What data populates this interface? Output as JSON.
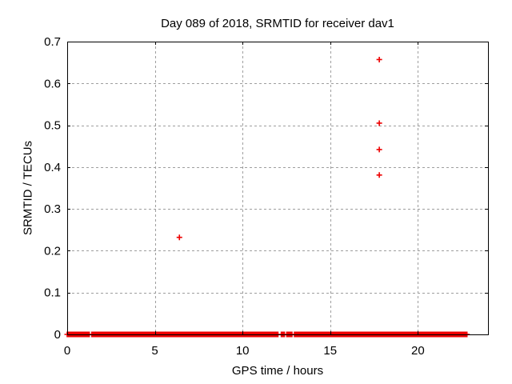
{
  "page": {
    "background": "#ffffff",
    "frame_color": "#000000",
    "grid_color": "#9e9e9e"
  },
  "chart_data": {
    "type": "scatter",
    "title": "Day 089 of 2018, SRMTID for receiver dav1",
    "xlabel": "GPS time / hours",
    "ylabel": "SRMTID / TECUs",
    "xlim": [
      0,
      24
    ],
    "ylim": [
      0,
      0.7
    ],
    "x_ticks": [
      0,
      5,
      10,
      15,
      20
    ],
    "x_tick_labels": [
      "0",
      "5",
      "10",
      "15",
      "20"
    ],
    "y_ticks": [
      0,
      0.1,
      0.2,
      0.3,
      0.4,
      0.5,
      0.6,
      0.7
    ],
    "y_tick_labels": [
      "0",
      "0.1",
      "0.2",
      "0.3",
      "0.4",
      "0.5",
      "0.6",
      "0.7"
    ],
    "grid": true,
    "legend": "none",
    "marker": {
      "shape": "plus",
      "color": "#ee0000",
      "size": 7,
      "stroke_width": 1.6
    },
    "outlier_points": [
      {
        "x": 6.4,
        "y": 0.232
      },
      {
        "x": 17.8,
        "y": 0.657
      },
      {
        "x": 17.8,
        "y": 0.505
      },
      {
        "x": 17.8,
        "y": 0.442
      },
      {
        "x": 17.8,
        "y": 0.381
      }
    ],
    "baseline_band": {
      "y": 0,
      "description": "dense run of plus markers at SRMTID ~ 0 TECUs",
      "segments_hours": [
        [
          0.0,
          1.29
        ],
        [
          1.4,
          12.04
        ],
        [
          12.21,
          12.42
        ],
        [
          12.52,
          12.82
        ],
        [
          12.96,
          22.81
        ]
      ],
      "marker_spacing_hours": 0.06
    }
  }
}
